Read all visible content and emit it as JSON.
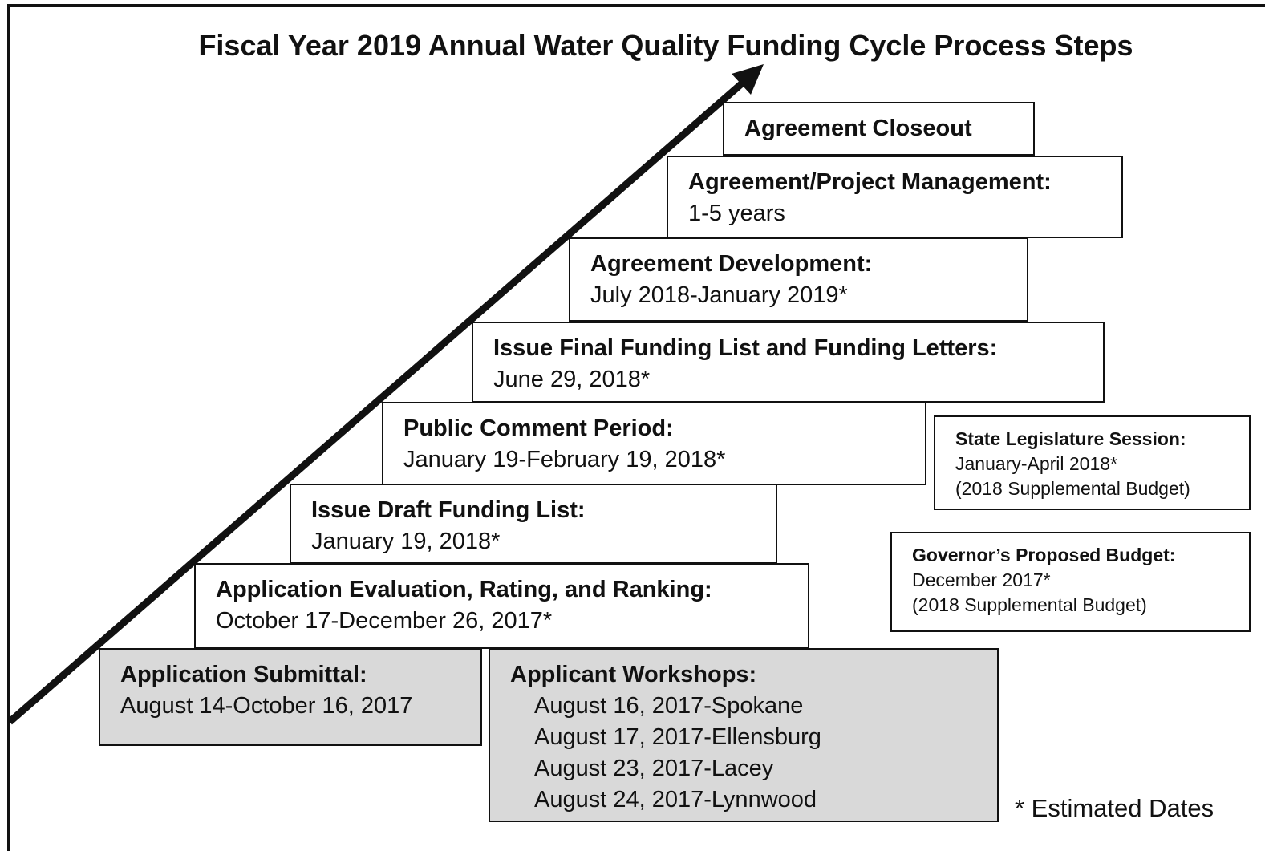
{
  "title": "Fiscal Year 2019 Annual Water Quality Funding Cycle Process Steps",
  "steps": [
    {
      "label": "Agreement Closeout",
      "details": []
    },
    {
      "label": "Agreement/Project Management:",
      "details": [
        "1-5 years"
      ]
    },
    {
      "label": "Agreement Development:",
      "details": [
        "July 2018-January 2019*"
      ]
    },
    {
      "label": "Issue Final Funding List and Funding Letters:",
      "details": [
        "June 29, 2018*"
      ]
    },
    {
      "label": "Public Comment Period:",
      "details": [
        "January 19-February 19, 2018*"
      ]
    },
    {
      "label": "Issue Draft Funding List:",
      "details": [
        "January 19, 2018*"
      ]
    },
    {
      "label": "Application Evaluation, Rating, and Ranking:",
      "details": [
        "October 17-December 26, 2017*"
      ]
    },
    {
      "label": "Application Submittal:",
      "details": [
        "August 14-October 16, 2017"
      ]
    },
    {
      "label": "Applicant Workshops:",
      "details": [
        "August 16, 2017-Spokane",
        "August 17, 2017-Ellensburg",
        "August 23, 2017-Lacey",
        "August 24, 2017-Lynnwood"
      ]
    }
  ],
  "side_notes": [
    {
      "label": "State Legislature Session:",
      "details": [
        "January-April 2018*",
        "(2018 Supplemental Budget)"
      ]
    },
    {
      "label": "Governor’s Proposed Budget:",
      "details": [
        "December 2017*",
        "(2018 Supplemental Budget)"
      ]
    }
  ],
  "footnote": "* Estimated Dates"
}
